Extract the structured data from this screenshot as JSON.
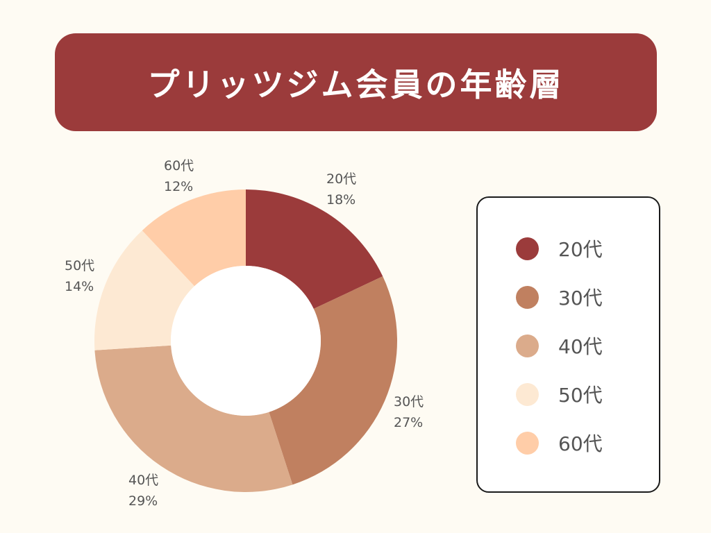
{
  "title": "プリッツジム会員の年齢層",
  "chart_data": {
    "type": "pie",
    "title": "プリッツジム会員の年齢層",
    "categories": [
      "20代",
      "30代",
      "40代",
      "50代",
      "60代"
    ],
    "values": [
      18,
      27,
      29,
      14,
      12
    ],
    "value_labels": [
      "18%",
      "27%",
      "29%",
      "14%",
      "12%"
    ],
    "colors": [
      "#9b3b3b",
      "#c08060",
      "#dbab8b",
      "#fde9d3",
      "#ffcda8"
    ],
    "donut": true,
    "start_angle": "12 o'clock",
    "direction": "clockwise",
    "legend_position": "right"
  }
}
